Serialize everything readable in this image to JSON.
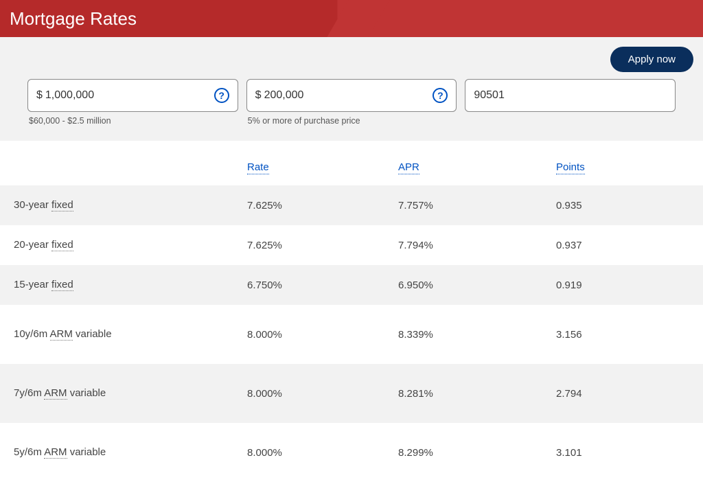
{
  "header": {
    "title": "Mortgage Rates",
    "apply_label": "Apply now"
  },
  "inputs": {
    "purchase": {
      "prefix": "$",
      "value": "1,000,000",
      "hint": "$60,000 - $2.5 million"
    },
    "down": {
      "prefix": "$",
      "value": "200,000",
      "hint": "5% or more of purchase price"
    },
    "zip": {
      "value": "90501"
    },
    "help_glyph": "?"
  },
  "columns": {
    "rate": "Rate",
    "apr": "APR",
    "points": "Points"
  },
  "rows": [
    {
      "name_pre": "30-year ",
      "name_dotted": "fixed",
      "name_post": "",
      "rate": "7.625%",
      "apr": "7.757%",
      "points": "0.935",
      "alt": true,
      "tall": false
    },
    {
      "name_pre": "20-year ",
      "name_dotted": "fixed",
      "name_post": "",
      "rate": "7.625%",
      "apr": "7.794%",
      "points": "0.937",
      "alt": false,
      "tall": false
    },
    {
      "name_pre": "15-year ",
      "name_dotted": "fixed",
      "name_post": "",
      "rate": "6.750%",
      "apr": "6.950%",
      "points": "0.919",
      "alt": true,
      "tall": false
    },
    {
      "name_pre": "10y/6m ",
      "name_dotted": "ARM",
      "name_post": " variable",
      "rate": "8.000%",
      "apr": "8.339%",
      "points": "3.156",
      "alt": false,
      "tall": true
    },
    {
      "name_pre": "7y/6m ",
      "name_dotted": "ARM",
      "name_post": " variable",
      "rate": "8.000%",
      "apr": "8.281%",
      "points": "2.794",
      "alt": true,
      "tall": true
    },
    {
      "name_pre": "5y/6m ",
      "name_dotted": "ARM",
      "name_post": " variable",
      "rate": "8.000%",
      "apr": "8.299%",
      "points": "3.101",
      "alt": false,
      "tall": true
    }
  ]
}
